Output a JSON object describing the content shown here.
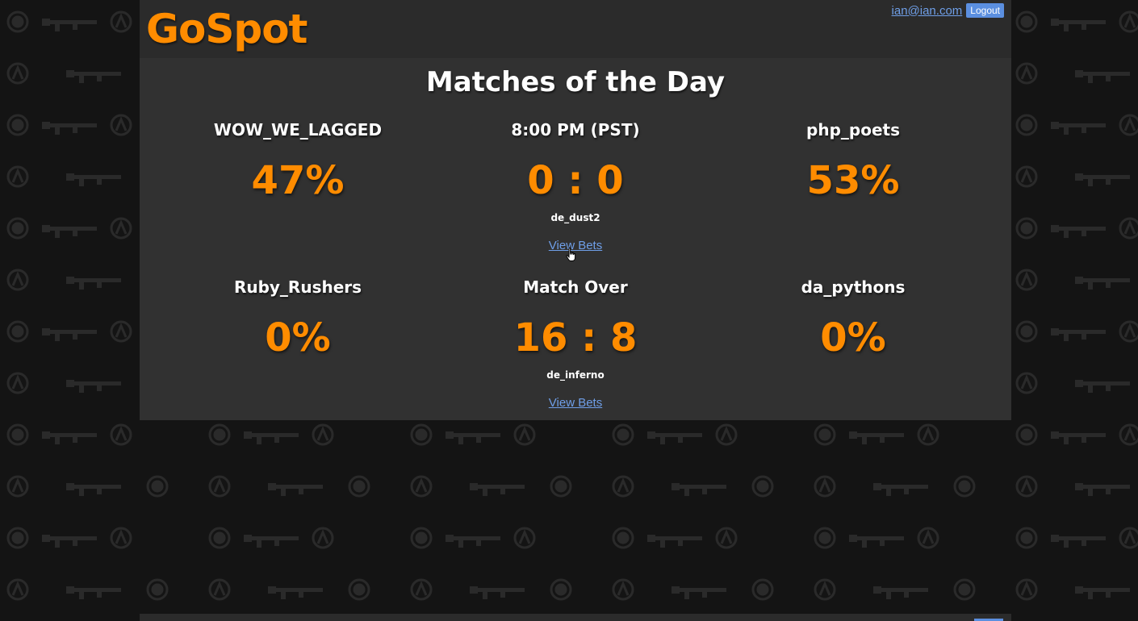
{
  "header": {
    "logo": "GoSpot",
    "user_email": "ian@ian.com",
    "logout_label": "Logout"
  },
  "page_title": "Matches of the Day",
  "matches": [
    {
      "team_a": "WOW_WE_LAGGED",
      "team_a_pct": "47%",
      "status": "8:00 PM (PST)",
      "score": "0 : 0",
      "map": "de_dust2",
      "view_bets": "View Bets",
      "team_b": "php_poets",
      "team_b_pct": "53%"
    },
    {
      "team_a": "Ruby_Rushers",
      "team_a_pct": "0%",
      "status": "Match Over",
      "score": "16 : 8",
      "map": "de_inferno",
      "view_bets": "View Bets",
      "team_b": "da_pythons",
      "team_b_pct": "0%"
    }
  ],
  "colors": {
    "accent": "#ff8c00",
    "link": "#6f9fe8",
    "button": "#5b8fe0",
    "panel": "#313131",
    "header": "#2b2b2b",
    "background": "#141414"
  }
}
